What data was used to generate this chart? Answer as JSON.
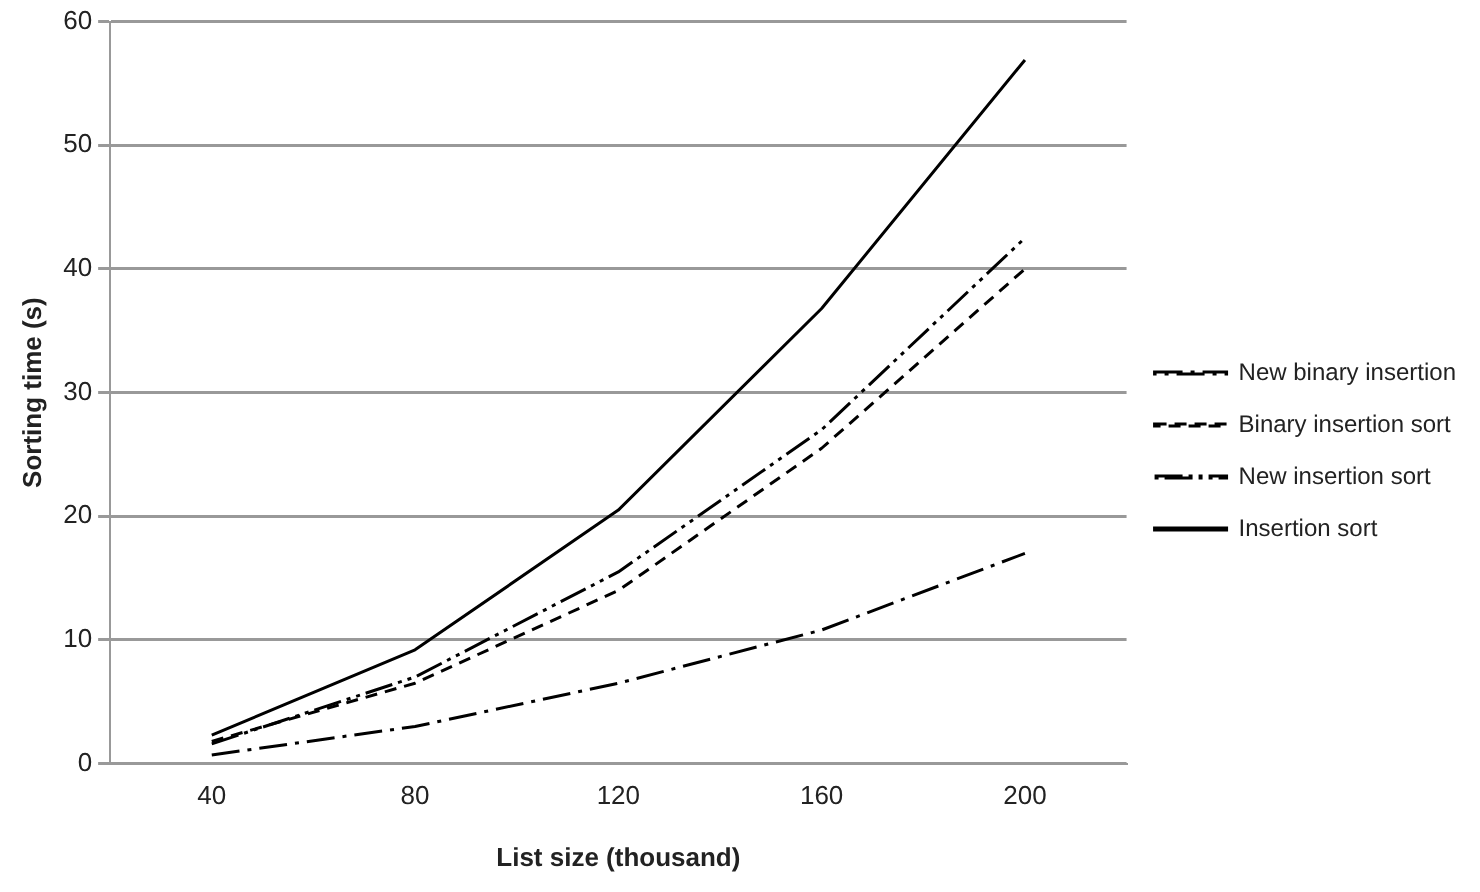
{
  "chart_data": {
    "type": "line",
    "xlabel": "List size (thousand)",
    "ylabel": "Sorting time (s)",
    "categories": [
      "40",
      "80",
      "120",
      "160",
      "200"
    ],
    "series": [
      {
        "name": "New binary insertion",
        "color": "#000000",
        "line_style": "dashdot",
        "values": [
          0.7,
          3.0,
          6.5,
          10.8,
          17
        ]
      },
      {
        "name": "Binary insertion sort",
        "color": "#000000",
        "line_style": "dashed",
        "values": [
          1.8,
          6.5,
          14,
          25.5,
          40
        ]
      },
      {
        "name": "New insertion sort",
        "color": "#000000",
        "line_style": "dashdotdot",
        "values": [
          1.6,
          7,
          15.5,
          27,
          42.5
        ]
      },
      {
        "name": "Insertion sort",
        "color": "#000000",
        "line_style": "solid",
        "values": [
          2.3,
          9.2,
          20.5,
          36.8,
          56.9
        ]
      }
    ],
    "ylim": [
      0,
      60
    ],
    "yticks": [
      0,
      10,
      20,
      30,
      40,
      50,
      60
    ],
    "grid": "y",
    "legend": "right",
    "marker": "none"
  }
}
